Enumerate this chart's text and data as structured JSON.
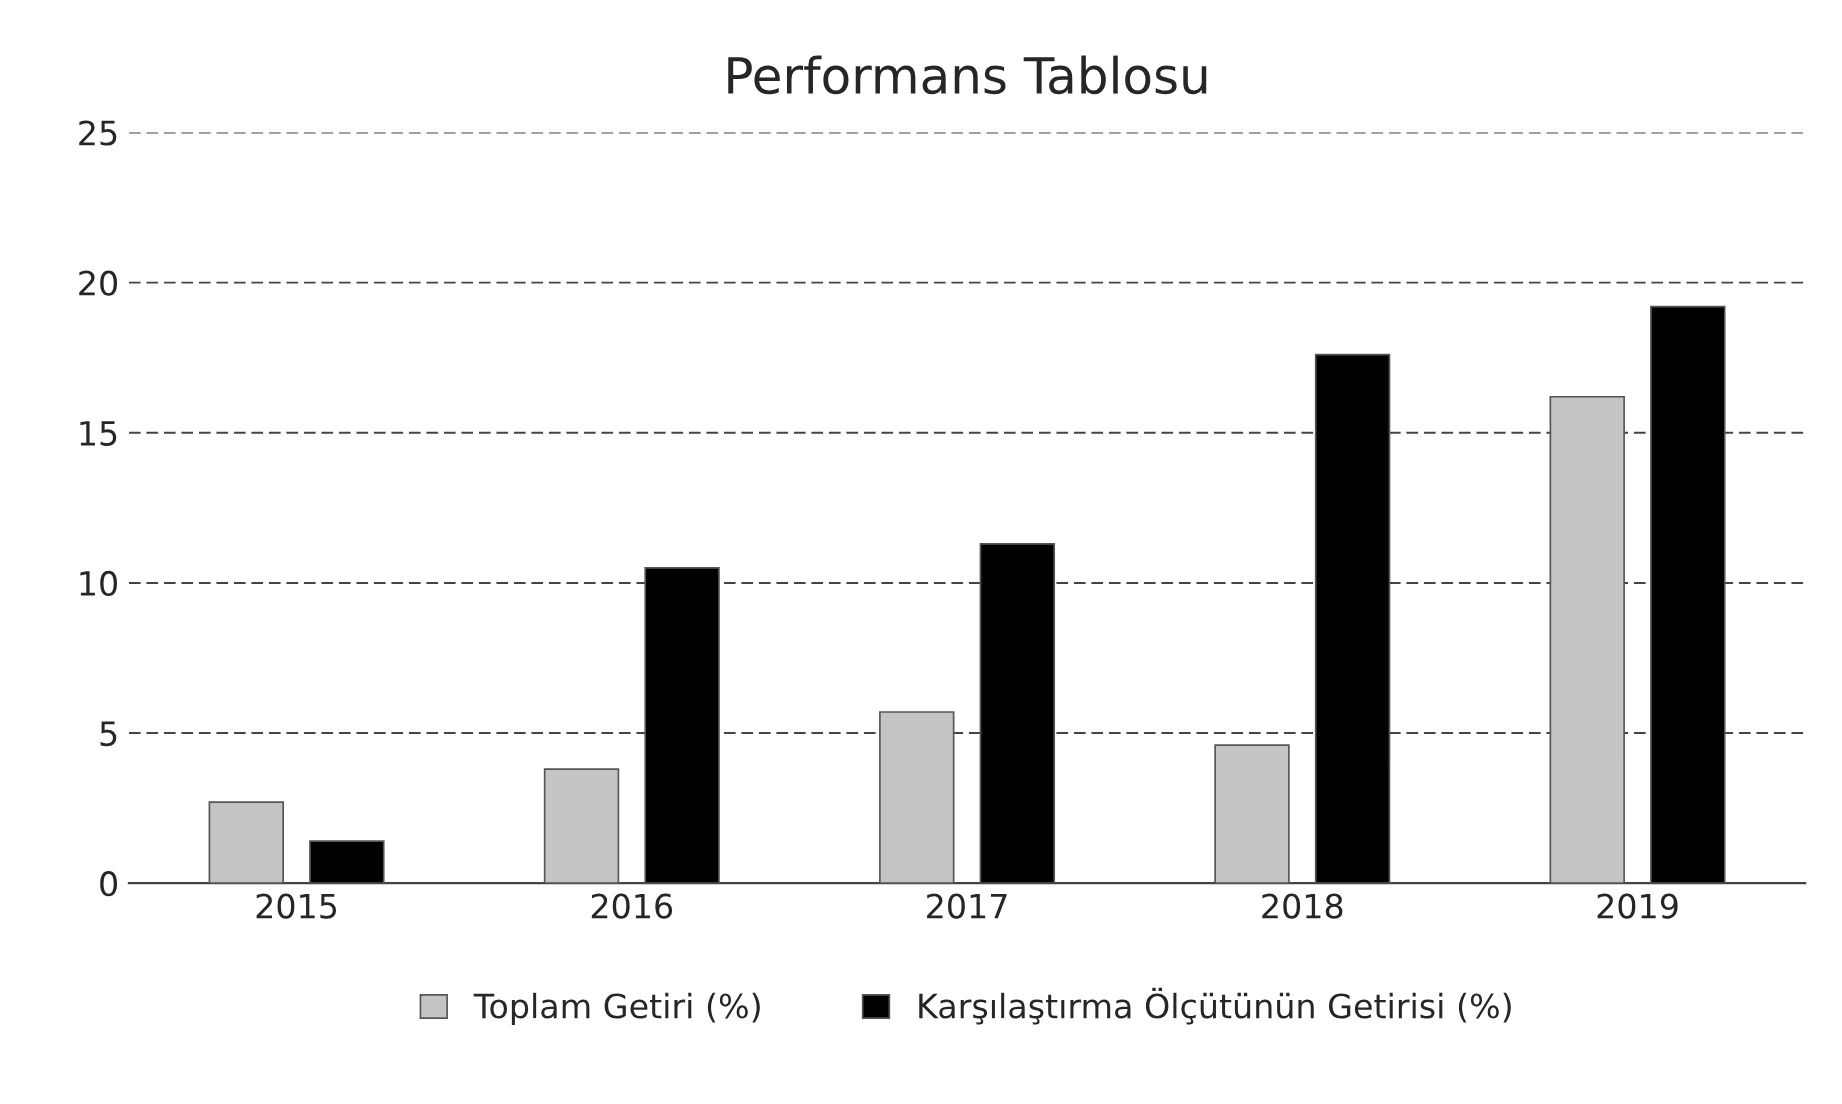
{
  "chart_data": {
    "type": "bar",
    "title": "Performans Tablosu",
    "categories": [
      "2015",
      "2016",
      "2017",
      "2018",
      "2019"
    ],
    "series": [
      {
        "name": "Toplam Getiri (%)",
        "color": "#c4c4c4",
        "values": [
          2.7,
          3.8,
          5.7,
          4.6,
          16.2
        ]
      },
      {
        "name": "Karşılaştırma Ölçütünün Getirisi (%)",
        "color": "#000000",
        "values": [
          1.4,
          10.5,
          11.3,
          17.6,
          19.2
        ]
      }
    ],
    "ylim": [
      0,
      25
    ],
    "yticks": [
      0,
      5,
      10,
      15,
      20,
      25
    ],
    "grid": "y",
    "legend": "bottom"
  }
}
